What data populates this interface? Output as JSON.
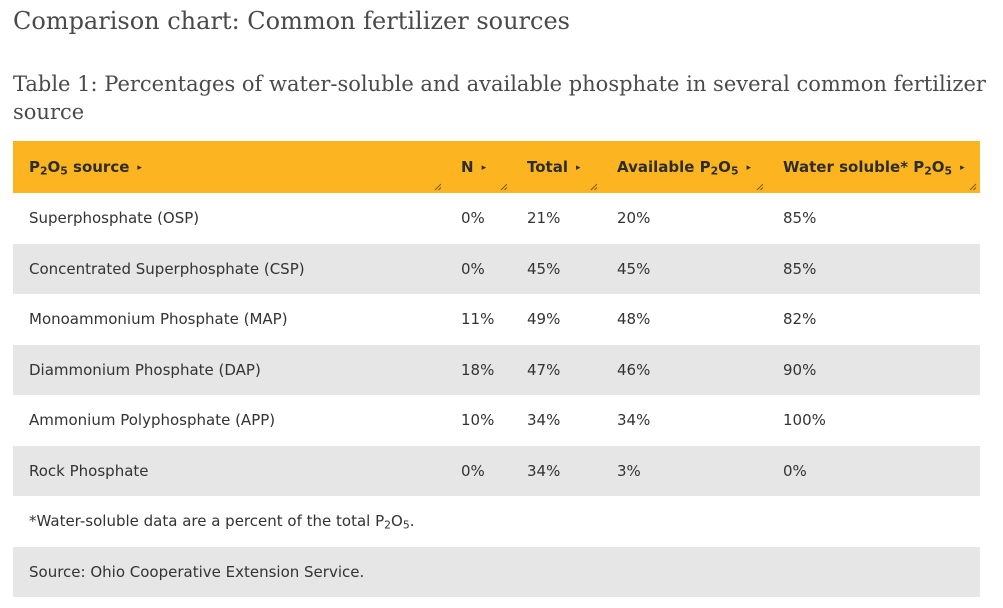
{
  "page": {
    "title": "Comparison chart: Common fertilizer sources"
  },
  "table": {
    "caption": "Table 1: Percentages of water-soluble and available phosphate in several common fertilizer source",
    "headers": [
      {
        "pre": "P",
        "sub1": "2",
        "mid": "O",
        "sub2": "5",
        "post": " source"
      },
      {
        "pre": "N",
        "sub1": "",
        "mid": "",
        "sub2": "",
        "post": ""
      },
      {
        "pre": "Total",
        "sub1": "",
        "mid": "",
        "sub2": "",
        "post": ""
      },
      {
        "pre": "Available P",
        "sub1": "2",
        "mid": "O",
        "sub2": "5",
        "post": ""
      },
      {
        "pre": "Water soluble* P",
        "sub1": "2",
        "mid": "O",
        "sub2": "5",
        "post": ""
      }
    ],
    "sort_glyph": "▸",
    "rows": [
      [
        "Superphosphate (OSP)",
        "0%",
        "21%",
        "20%",
        "85%"
      ],
      [
        "Concentrated Superphosphate (CSP)",
        "0%",
        "45%",
        "45%",
        "85%"
      ],
      [
        "Monoammonium Phosphate (MAP)",
        "11%",
        "49%",
        "48%",
        "82%"
      ],
      [
        "Diammonium Phosphate (DAP)",
        "18%",
        "47%",
        "46%",
        "90%"
      ],
      [
        "Ammonium Polyphosphate (APP)",
        "10%",
        "34%",
        "34%",
        "100%"
      ],
      [
        "Rock Phosphate",
        "0%",
        "34%",
        "3%",
        "0%"
      ]
    ],
    "footnote": {
      "pre": "*Water-soluble data are a percent of the total P",
      "sub1": "2",
      "mid": "O",
      "sub2": "5",
      "post": "."
    },
    "source_note": "Source: Ohio Cooperative Extension Service."
  },
  "colors": {
    "header_bg": "#fcb520",
    "stripe_bg": "#e6e6e6",
    "text": "#333333"
  },
  "icons": {
    "sort": "sort-arrow-icon",
    "resize": "column-resize-grip-icon"
  }
}
